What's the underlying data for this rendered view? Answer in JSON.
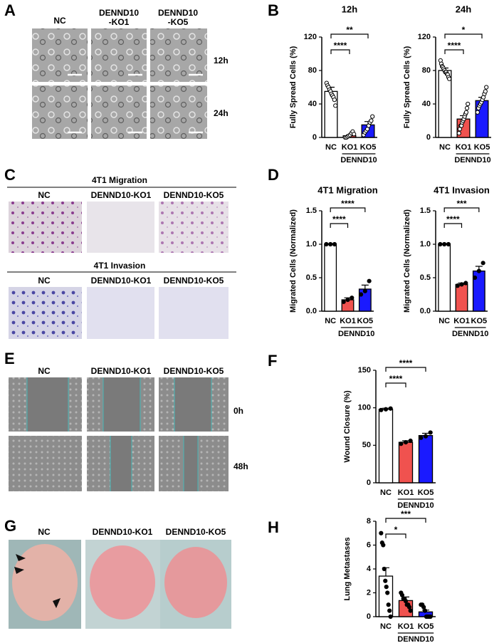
{
  "panel_labels": [
    "A",
    "B",
    "C",
    "D",
    "E",
    "F",
    "G",
    "H"
  ],
  "image_panels": {
    "A": {
      "columns": [
        [
          "NC"
        ],
        [
          "DENND10",
          "-KO1"
        ],
        [
          "DENND10",
          "-KO5"
        ]
      ],
      "rows": [
        "12h",
        "24h"
      ]
    },
    "C": {
      "sections": [
        {
          "title": "4T1 Migration",
          "columns": [
            "NC",
            "DENND10-KO1",
            "DENND10-KO5"
          ]
        },
        {
          "title": "4T1 Invasion",
          "columns": [
            "NC",
            "DENND10-KO1",
            "DENND10-KO5"
          ]
        }
      ]
    },
    "E": {
      "columns": [
        "NC",
        "DENND10-KO1",
        "DENND10-KO5"
      ],
      "rows": [
        "0h",
        "48h"
      ]
    },
    "G": {
      "columns": [
        "NC",
        "DENND10-KO1",
        "DENND10-KO5"
      ]
    }
  },
  "chart_data": [
    {
      "type": "bar",
      "title": "12h",
      "ylabel": "Fully Spread Cells (%)",
      "categories": [
        "NC",
        "KO1",
        "KO5"
      ],
      "group_label": "DENND10",
      "values": [
        55,
        2,
        15
      ],
      "errors": [
        5,
        1,
        4
      ],
      "colors": [
        "#ffffff",
        "#f0524f",
        "#1a1aff"
      ],
      "points": [
        [
          65,
          62,
          60,
          57,
          55,
          52,
          50,
          48,
          45,
          38
        ],
        [
          0,
          0,
          1,
          2,
          3,
          5,
          7,
          4
        ],
        [
          3,
          6,
          8,
          10,
          14,
          18,
          20,
          25
        ]
      ],
      "open_points": true,
      "ylim": [
        0,
        120
      ],
      "yticks": [
        0,
        40,
        80,
        120
      ],
      "significance": [
        "****",
        "**"
      ]
    },
    {
      "type": "bar",
      "title": "24h",
      "ylabel": "Fully Spread Cells (%)",
      "categories": [
        "NC",
        "KO1",
        "KO5"
      ],
      "group_label": "DENND10",
      "values": [
        80,
        22,
        44
      ],
      "errors": [
        3,
        4,
        4
      ],
      "colors": [
        "#ffffff",
        "#f0524f",
        "#1a1aff"
      ],
      "points": [
        [
          92,
          88,
          85,
          84,
          82,
          80,
          78,
          78,
          76,
          75,
          72,
          70
        ],
        [
          5,
          10,
          14,
          14,
          18,
          20,
          22,
          25,
          28,
          30,
          35,
          40
        ],
        [
          30,
          35,
          38,
          40,
          42,
          45,
          48,
          52,
          55,
          60
        ]
      ],
      "open_points": true,
      "ylim": [
        0,
        120
      ],
      "yticks": [
        0,
        40,
        80,
        120
      ],
      "significance": [
        "****",
        "*"
      ]
    },
    {
      "type": "bar",
      "title": "4T1 Migration",
      "ylabel": "Migrated Cells (Normalized)",
      "categories": [
        "NC",
        "KO1",
        "KO5"
      ],
      "group_label": "DENND10",
      "values": [
        1.0,
        0.17,
        0.33
      ],
      "errors": [
        0,
        0.03,
        0.06
      ],
      "colors": [
        "#ffffff",
        "#f0524f",
        "#1a1aff"
      ],
      "points": [
        [
          1,
          1,
          1
        ],
        [
          0.14,
          0.17,
          0.2
        ],
        [
          0.25,
          0.3,
          0.45
        ]
      ],
      "open_points": false,
      "ylim": [
        0,
        1.5
      ],
      "yticks": [
        {
          "value": 0,
          "label": "0.0"
        },
        {
          "value": 0.5,
          "label": "0.5"
        },
        {
          "value": 1,
          "label": "1.0"
        },
        {
          "value": 1.5,
          "label": "1.5"
        }
      ],
      "significance": [
        "****",
        "****"
      ]
    },
    {
      "type": "bar",
      "title": "4T1 Invasion",
      "ylabel": "Migrated Cells (Normalized)",
      "categories": [
        "NC",
        "KO1",
        "KO5"
      ],
      "group_label": "DENND10",
      "values": [
        1.0,
        0.4,
        0.6
      ],
      "errors": [
        0,
        0.02,
        0.07
      ],
      "colors": [
        "#ffffff",
        "#f0524f",
        "#1a1aff"
      ],
      "points": [
        [
          1,
          1,
          1
        ],
        [
          0.38,
          0.4,
          0.42
        ],
        [
          0.5,
          0.6,
          0.72
        ]
      ],
      "open_points": false,
      "ylim": [
        0,
        1.5
      ],
      "yticks": [
        {
          "value": 0,
          "label": "0.0"
        },
        {
          "value": 0.5,
          "label": "0.5"
        },
        {
          "value": 1,
          "label": "1.0"
        },
        {
          "value": 1.5,
          "label": "1.5"
        }
      ],
      "significance": [
        "****",
        "***"
      ]
    },
    {
      "type": "bar",
      "ylabel": "Wound Closure (%)",
      "categories": [
        "NC",
        "KO1",
        "KO5"
      ],
      "group_label": "DENND10",
      "values": [
        98,
        54,
        63
      ],
      "errors": [
        1.5,
        2,
        3
      ],
      "colors": [
        "#ffffff",
        "#f0524f",
        "#1a1aff"
      ],
      "points": [
        [
          97,
          98,
          99
        ],
        [
          52,
          54,
          56
        ],
        [
          60,
          62,
          67
        ]
      ],
      "open_points": false,
      "ylim": [
        0,
        150
      ],
      "yticks": [
        0,
        50,
        100,
        150
      ],
      "significance": [
        "****",
        "****"
      ]
    },
    {
      "type": "bar",
      "ylabel": "Lung Metastases",
      "categories": [
        "NC",
        "KO1",
        "KO5"
      ],
      "group_label": "DENND10",
      "values": [
        3.4,
        1.35,
        0.4
      ],
      "errors": [
        0.7,
        0.3,
        0.15
      ],
      "colors": [
        "#ffffff",
        "#f0524f",
        "#1a1aff"
      ],
      "points": [
        [
          7,
          6.2,
          6,
          4,
          3,
          2.5,
          2,
          1,
          0.5,
          0
        ],
        [
          2,
          1.8,
          1.5,
          1.5,
          1.3,
          1,
          1,
          0.8,
          0.5
        ],
        [
          1,
          1,
          0.8,
          0.5,
          0,
          0,
          0,
          0
        ]
      ],
      "open_points": false,
      "ylim": [
        0,
        8
      ],
      "yticks": [
        0,
        2,
        4,
        6,
        8
      ],
      "significance": [
        "*",
        "***"
      ]
    }
  ]
}
